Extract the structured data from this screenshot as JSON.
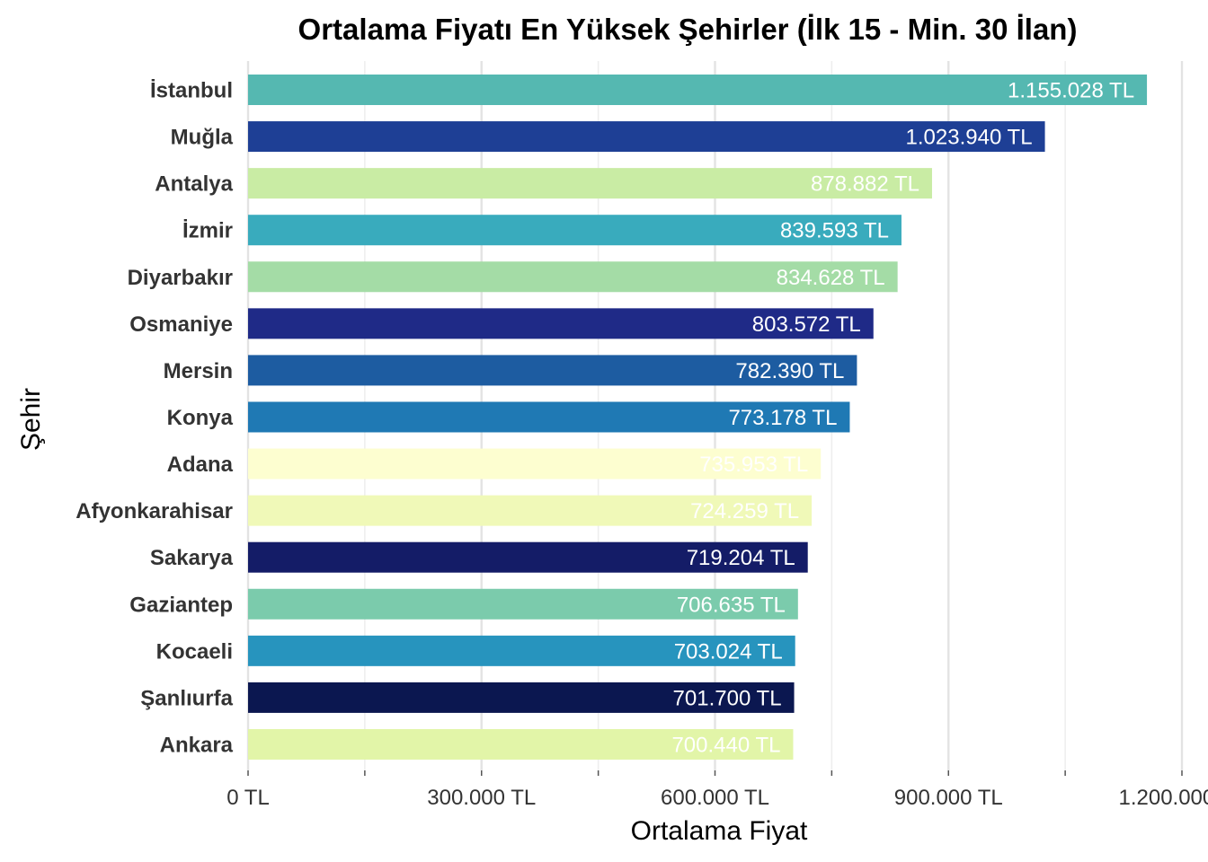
{
  "chart_data": {
    "type": "bar",
    "orientation": "horizontal",
    "title": "Ortalama Fiyatı En Yüksek Şehirler (İlk 15 - Min. 30 İlan)",
    "xlabel": "Ortalama Fiyat",
    "ylabel": "Şehir",
    "xlim": [
      0,
      1200000
    ],
    "xticks": [
      0,
      300000,
      600000,
      900000,
      1200000
    ],
    "xtick_labels": [
      "0 TL",
      "300.000 TL",
      "600.000 TL",
      "900.000 TL",
      "1.200.000 TL"
    ],
    "grid": true,
    "categories": [
      "İstanbul",
      "Muğla",
      "Antalya",
      "İzmir",
      "Diyarbakır",
      "Osmaniye",
      "Mersin",
      "Konya",
      "Adana",
      "Afyonkarahisar",
      "Sakarya",
      "Gaziantep",
      "Kocaeli",
      "Şanlıurfa",
      "Ankara"
    ],
    "values": [
      1155028,
      1023940,
      878882,
      839593,
      834628,
      803572,
      782390,
      773178,
      735953,
      724259,
      719204,
      706635,
      703024,
      701700,
      700440
    ],
    "data_labels": [
      "1.155.028 TL",
      "1.023.940 TL",
      "878.882 TL",
      "839.593 TL",
      "834.628 TL",
      "803.572 TL",
      "782.390 TL",
      "773.178 TL",
      "735.953 TL",
      "724.259 TL",
      "719.204 TL",
      "706.635 TL",
      "703.024 TL",
      "701.700 TL",
      "700.440 TL"
    ],
    "colors": [
      "#55b8b1",
      "#1e3f95",
      "#c9eca4",
      "#39abbd",
      "#a4dca6",
      "#1f2a87",
      "#1d5ca1",
      "#1f79b4",
      "#fdfed0",
      "#f0f9b8",
      "#141c67",
      "#7bcbac",
      "#2794be",
      "#0b1750",
      "#e2f5a8"
    ]
  }
}
